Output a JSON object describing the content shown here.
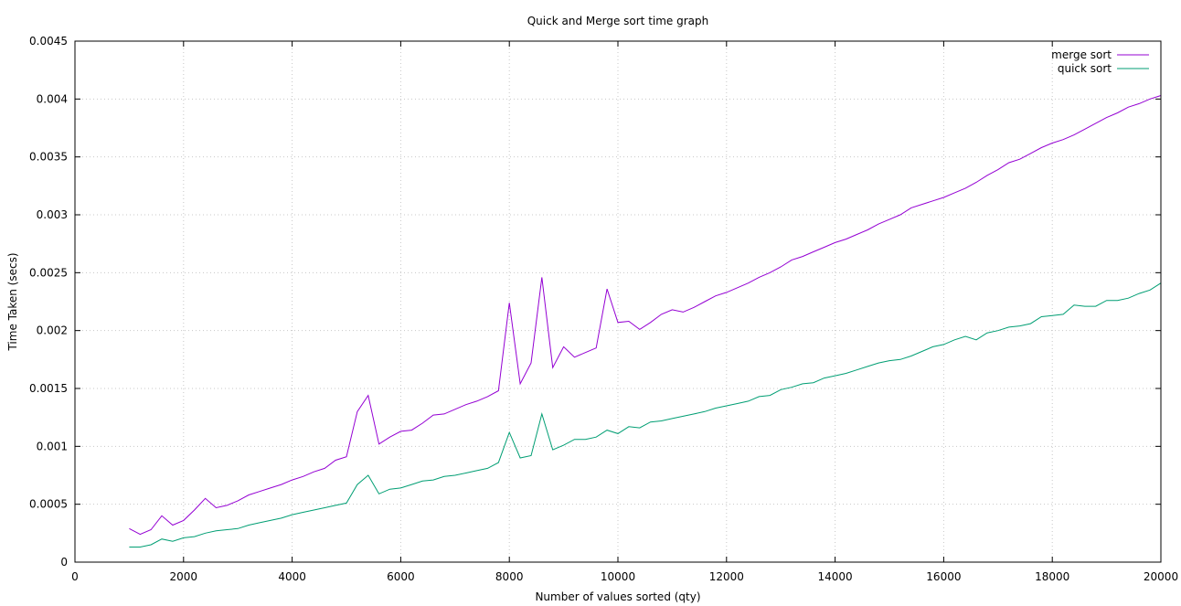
{
  "chart_data": {
    "type": "line",
    "title": "Quick and Merge sort time graph",
    "xlabel": "Number of values sorted (qty)",
    "ylabel": "Time Taken (secs)",
    "xlim": [
      0,
      20000
    ],
    "ylim": [
      0,
      0.0045
    ],
    "x_ticks": [
      0,
      2000,
      4000,
      6000,
      8000,
      10000,
      12000,
      14000,
      16000,
      18000,
      20000
    ],
    "x_tick_labels": [
      "0",
      "2000",
      "4000",
      "6000",
      "8000",
      "10000",
      "12000",
      "14000",
      "16000",
      "18000",
      "20000"
    ],
    "y_ticks": [
      0,
      0.0005,
      0.001,
      0.0015,
      0.002,
      0.0025,
      0.003,
      0.0035,
      0.004,
      0.0045
    ],
    "y_tick_labels": [
      "0",
      "0.0005",
      "0.001",
      "0.0015",
      "0.002",
      "0.0025",
      "0.003",
      "0.0035",
      "0.004",
      "0.0045"
    ],
    "grid": true,
    "legend_position": "top-right",
    "series": [
      {
        "name": "merge sort",
        "color": "#9400d3",
        "points": [
          [
            1000,
            0.00029
          ],
          [
            1200,
            0.00024
          ],
          [
            1400,
            0.00028
          ],
          [
            1600,
            0.0004
          ],
          [
            1800,
            0.00032
          ],
          [
            2000,
            0.00036
          ],
          [
            2200,
            0.00045
          ],
          [
            2400,
            0.00055
          ],
          [
            2600,
            0.00047
          ],
          [
            2800,
            0.00049
          ],
          [
            3000,
            0.00053
          ],
          [
            3200,
            0.00058
          ],
          [
            3400,
            0.00061
          ],
          [
            3600,
            0.00064
          ],
          [
            3800,
            0.00067
          ],
          [
            4000,
            0.00071
          ],
          [
            4200,
            0.00074
          ],
          [
            4400,
            0.00078
          ],
          [
            4600,
            0.00081
          ],
          [
            4800,
            0.00088
          ],
          [
            5000,
            0.00091
          ],
          [
            5200,
            0.0013
          ],
          [
            5400,
            0.00144
          ],
          [
            5600,
            0.00102
          ],
          [
            5800,
            0.00108
          ],
          [
            6000,
            0.00113
          ],
          [
            6200,
            0.00114
          ],
          [
            6400,
            0.0012
          ],
          [
            6600,
            0.00127
          ],
          [
            6800,
            0.00128
          ],
          [
            7000,
            0.00132
          ],
          [
            7200,
            0.00136
          ],
          [
            7400,
            0.00139
          ],
          [
            7600,
            0.00143
          ],
          [
            7800,
            0.00148
          ],
          [
            8000,
            0.00224
          ],
          [
            8200,
            0.00154
          ],
          [
            8400,
            0.00172
          ],
          [
            8600,
            0.00246
          ],
          [
            8800,
            0.00168
          ],
          [
            9000,
            0.00186
          ],
          [
            9200,
            0.00177
          ],
          [
            9400,
            0.00181
          ],
          [
            9600,
            0.00185
          ],
          [
            9800,
            0.00236
          ],
          [
            10000,
            0.00207
          ],
          [
            10200,
            0.00208
          ],
          [
            10400,
            0.00201
          ],
          [
            10600,
            0.00207
          ],
          [
            10800,
            0.00214
          ],
          [
            11000,
            0.00218
          ],
          [
            11200,
            0.00216
          ],
          [
            11400,
            0.0022
          ],
          [
            11600,
            0.00225
          ],
          [
            11800,
            0.0023
          ],
          [
            12000,
            0.00233
          ],
          [
            12200,
            0.00237
          ],
          [
            12400,
            0.00241
          ],
          [
            12600,
            0.00246
          ],
          [
            12800,
            0.0025
          ],
          [
            13000,
            0.00255
          ],
          [
            13200,
            0.00261
          ],
          [
            13400,
            0.00264
          ],
          [
            13600,
            0.00268
          ],
          [
            13800,
            0.00272
          ],
          [
            14000,
            0.00276
          ],
          [
            14200,
            0.00279
          ],
          [
            14400,
            0.00283
          ],
          [
            14600,
            0.00287
          ],
          [
            14800,
            0.00292
          ],
          [
            15000,
            0.00296
          ],
          [
            15200,
            0.003
          ],
          [
            15400,
            0.00306
          ],
          [
            15600,
            0.00309
          ],
          [
            15800,
            0.00312
          ],
          [
            16000,
            0.00315
          ],
          [
            16200,
            0.00319
          ],
          [
            16400,
            0.00323
          ],
          [
            16600,
            0.00328
          ],
          [
            16800,
            0.00334
          ],
          [
            17000,
            0.00339
          ],
          [
            17200,
            0.00345
          ],
          [
            17400,
            0.00348
          ],
          [
            17600,
            0.00353
          ],
          [
            17800,
            0.00358
          ],
          [
            18000,
            0.00362
          ],
          [
            18200,
            0.00365
          ],
          [
            18400,
            0.00369
          ],
          [
            18600,
            0.00374
          ],
          [
            18800,
            0.00379
          ],
          [
            19000,
            0.00384
          ],
          [
            19200,
            0.00388
          ],
          [
            19400,
            0.00393
          ],
          [
            19600,
            0.00396
          ],
          [
            19800,
            0.004
          ],
          [
            20000,
            0.00403
          ]
        ]
      },
      {
        "name": "quick sort",
        "color": "#009e73",
        "points": [
          [
            1000,
            0.00013
          ],
          [
            1200,
            0.00013
          ],
          [
            1400,
            0.00015
          ],
          [
            1600,
            0.0002
          ],
          [
            1800,
            0.00018
          ],
          [
            2000,
            0.00021
          ],
          [
            2200,
            0.00022
          ],
          [
            2400,
            0.00025
          ],
          [
            2600,
            0.00027
          ],
          [
            2800,
            0.00028
          ],
          [
            3000,
            0.00029
          ],
          [
            3200,
            0.00032
          ],
          [
            3400,
            0.00034
          ],
          [
            3600,
            0.00036
          ],
          [
            3800,
            0.00038
          ],
          [
            4000,
            0.00041
          ],
          [
            4200,
            0.00043
          ],
          [
            4400,
            0.00045
          ],
          [
            4600,
            0.00047
          ],
          [
            4800,
            0.00049
          ],
          [
            5000,
            0.00051
          ],
          [
            5200,
            0.00067
          ],
          [
            5400,
            0.00075
          ],
          [
            5600,
            0.00059
          ],
          [
            5800,
            0.00063
          ],
          [
            6000,
            0.00064
          ],
          [
            6200,
            0.00067
          ],
          [
            6400,
            0.0007
          ],
          [
            6600,
            0.00071
          ],
          [
            6800,
            0.00074
          ],
          [
            7000,
            0.00075
          ],
          [
            7200,
            0.00077
          ],
          [
            7400,
            0.00079
          ],
          [
            7600,
            0.00081
          ],
          [
            7800,
            0.00086
          ],
          [
            8000,
            0.00112
          ],
          [
            8200,
            0.0009
          ],
          [
            8400,
            0.00092
          ],
          [
            8600,
            0.00128
          ],
          [
            8800,
            0.00097
          ],
          [
            9000,
            0.00101
          ],
          [
            9200,
            0.00106
          ],
          [
            9400,
            0.00106
          ],
          [
            9600,
            0.00108
          ],
          [
            9800,
            0.00114
          ],
          [
            10000,
            0.00111
          ],
          [
            10200,
            0.00117
          ],
          [
            10400,
            0.00116
          ],
          [
            10600,
            0.00121
          ],
          [
            10800,
            0.00122
          ],
          [
            11000,
            0.00124
          ],
          [
            11200,
            0.00126
          ],
          [
            11400,
            0.00128
          ],
          [
            11600,
            0.0013
          ],
          [
            11800,
            0.00133
          ],
          [
            12000,
            0.00135
          ],
          [
            12200,
            0.00137
          ],
          [
            12400,
            0.00139
          ],
          [
            12600,
            0.00143
          ],
          [
            12800,
            0.00144
          ],
          [
            13000,
            0.00149
          ],
          [
            13200,
            0.00151
          ],
          [
            13400,
            0.00154
          ],
          [
            13600,
            0.00155
          ],
          [
            13800,
            0.00159
          ],
          [
            14000,
            0.00161
          ],
          [
            14200,
            0.00163
          ],
          [
            14400,
            0.00166
          ],
          [
            14600,
            0.00169
          ],
          [
            14800,
            0.00172
          ],
          [
            15000,
            0.00174
          ],
          [
            15200,
            0.00175
          ],
          [
            15400,
            0.00178
          ],
          [
            15600,
            0.00182
          ],
          [
            15800,
            0.00186
          ],
          [
            16000,
            0.00188
          ],
          [
            16200,
            0.00192
          ],
          [
            16400,
            0.00195
          ],
          [
            16600,
            0.00192
          ],
          [
            16800,
            0.00198
          ],
          [
            17000,
            0.002
          ],
          [
            17200,
            0.00203
          ],
          [
            17400,
            0.00204
          ],
          [
            17600,
            0.00206
          ],
          [
            17800,
            0.00212
          ],
          [
            18000,
            0.00213
          ],
          [
            18200,
            0.00214
          ],
          [
            18400,
            0.00222
          ],
          [
            18600,
            0.00221
          ],
          [
            18800,
            0.00221
          ],
          [
            19000,
            0.00226
          ],
          [
            19200,
            0.00226
          ],
          [
            19400,
            0.00228
          ],
          [
            19600,
            0.00232
          ],
          [
            19800,
            0.00235
          ],
          [
            20000,
            0.00241
          ]
        ]
      }
    ]
  }
}
